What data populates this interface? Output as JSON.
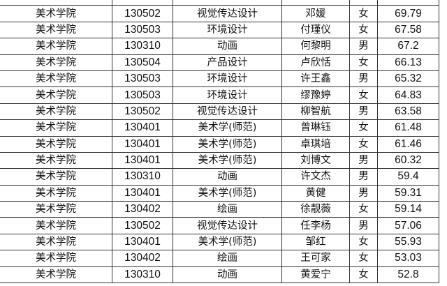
{
  "rows": [
    [
      "美术学院",
      "130502",
      "视觉传达设计",
      "邓媛",
      "女",
      "69.79"
    ],
    [
      "美术学院",
      "130503",
      "环境设计",
      "付瑾仪",
      "女",
      "67.58"
    ],
    [
      "美术学院",
      "130310",
      "动画",
      "何黎明",
      "男",
      "67.2"
    ],
    [
      "美术学院",
      "130504",
      "产品设计",
      "卢欣恬",
      "女",
      "66.13"
    ],
    [
      "美术学院",
      "130503",
      "环境设计",
      "许王鑫",
      "男",
      "65.32"
    ],
    [
      "美术学院",
      "130503",
      "环境设计",
      "缪豫婷",
      "女",
      "64.83"
    ],
    [
      "美术学院",
      "130502",
      "视觉传达设计",
      "柳智航",
      "男",
      "63.58"
    ],
    [
      "美术学院",
      "130401",
      "美术学(师范)",
      "曾琳钰",
      "女",
      "61.48"
    ],
    [
      "美术学院",
      "130401",
      "美术学(师范)",
      "卓琪培",
      "女",
      "61.46"
    ],
    [
      "美术学院",
      "130401",
      "美术学(师范)",
      "刘博文",
      "男",
      "60.32"
    ],
    [
      "美术学院",
      "130310",
      "动画",
      "许文杰",
      "男",
      "59.4"
    ],
    [
      "美术学院",
      "130401",
      "美术学(师范)",
      "黄健",
      "男",
      "59.31"
    ],
    [
      "美术学院",
      "130402",
      "绘画",
      "徐靓薇",
      "女",
      "59.14"
    ],
    [
      "美术学院",
      "130502",
      "视觉传达设计",
      "任李杨",
      "男",
      "57.06"
    ],
    [
      "美术学院",
      "130401",
      "美术学(师范)",
      "邹红",
      "女",
      "55.93"
    ],
    [
      "美术学院",
      "130402",
      "绘画",
      "王可家",
      "女",
      "53.03"
    ],
    [
      "美术学院",
      "130310",
      "动画",
      "黄爱宁",
      "女",
      "52.8"
    ]
  ]
}
